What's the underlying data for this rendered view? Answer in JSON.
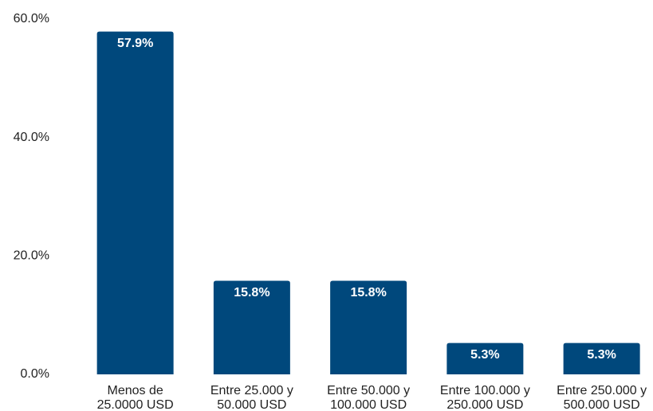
{
  "chart_data": {
    "type": "bar",
    "categories": [
      "Menos de 25.0000 USD",
      "Entre 25.000 y 50.000 USD",
      "Entre 50.000 y 100.000 USD",
      "Entre 100.000 y 250.000 USD",
      "Entre 250.000 y 500.000 USD"
    ],
    "values": [
      57.9,
      15.8,
      15.8,
      5.3,
      5.3
    ],
    "value_labels": [
      "57.9%",
      "15.8%",
      "15.8%",
      "5.3%",
      "5.3%"
    ],
    "color": "#00487c",
    "ylim": [
      0,
      60
    ],
    "yticks": [
      {
        "value": 0,
        "label": "0.0%"
      },
      {
        "value": 20,
        "label": "20.0%"
      },
      {
        "value": 40,
        "label": "40.0%"
      },
      {
        "value": 60,
        "label": "60.0%"
      }
    ],
    "grid": false
  }
}
